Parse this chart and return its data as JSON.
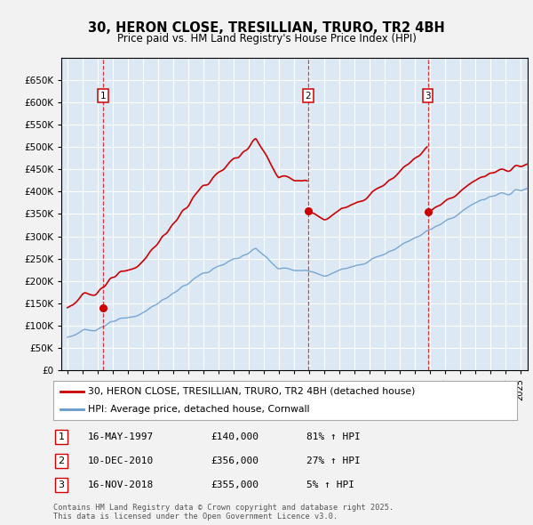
{
  "title": "30, HERON CLOSE, TRESILLIAN, TRURO, TR2 4BH",
  "subtitle": "Price paid vs. HM Land Registry's House Price Index (HPI)",
  "bg_color": "#dce9f5",
  "fig_bg_color": "#f2f2f2",
  "grid_color": "#ffffff",
  "red_line_color": "#cc0000",
  "blue_line_color": "#6699cc",
  "ylim": [
    0,
    700000
  ],
  "ytick_values": [
    0,
    50000,
    100000,
    150000,
    200000,
    250000,
    300000,
    350000,
    400000,
    450000,
    500000,
    550000,
    600000,
    650000
  ],
  "xlim_start": 1994.6,
  "xlim_end": 2025.5,
  "transaction_dates": [
    1997.37,
    2010.94,
    2018.88
  ],
  "transaction_prices": [
    140000,
    356000,
    355000
  ],
  "transaction_labels": [
    "1",
    "2",
    "3"
  ],
  "legend_line1": "30, HERON CLOSE, TRESILLIAN, TRURO, TR2 4BH (detached house)",
  "legend_line2": "HPI: Average price, detached house, Cornwall",
  "table_rows": [
    {
      "num": "1",
      "date": "16-MAY-1997",
      "price": "£140,000",
      "hpi": "81% ↑ HPI"
    },
    {
      "num": "2",
      "date": "10-DEC-2010",
      "price": "£356,000",
      "hpi": "27% ↑ HPI"
    },
    {
      "num": "3",
      "date": "16-NOV-2018",
      "price": "£355,000",
      "hpi": "5% ↑ HPI"
    }
  ],
  "footer": "Contains HM Land Registry data © Crown copyright and database right 2025.\nThis data is licensed under the Open Government Licence v3.0."
}
